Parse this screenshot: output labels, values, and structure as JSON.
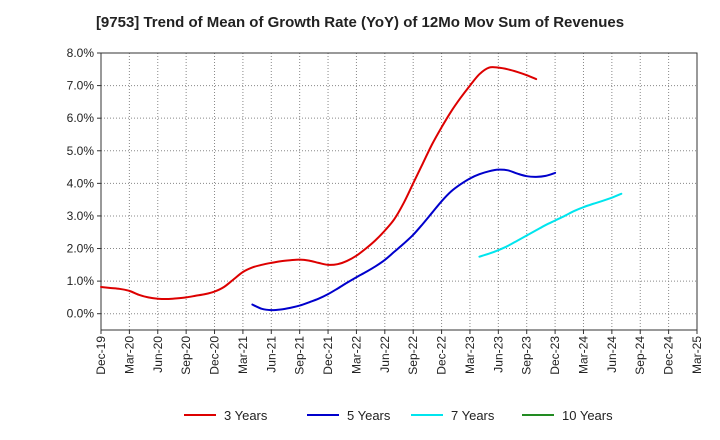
{
  "chart_data": {
    "type": "line",
    "title": "[9753]  Trend of Mean of Growth Rate (YoY) of 12Mo Mov Sum of Revenues",
    "xlabel": "",
    "ylabel": "",
    "ylim": [
      -0.5,
      8.0
    ],
    "yticks": [
      0.0,
      1.0,
      2.0,
      3.0,
      4.0,
      5.0,
      6.0,
      7.0,
      8.0
    ],
    "ytick_labels": [
      "0.0%",
      "1.0%",
      "2.0%",
      "3.0%",
      "4.0%",
      "5.0%",
      "6.0%",
      "7.0%",
      "8.0%"
    ],
    "x_tick_labels": [
      "Dec-19",
      "Mar-20",
      "Jun-20",
      "Sep-20",
      "Dec-20",
      "Mar-21",
      "Jun-21",
      "Sep-21",
      "Dec-21",
      "Mar-22",
      "Jun-22",
      "Sep-22",
      "Dec-22",
      "Mar-23",
      "Jun-23",
      "Sep-23",
      "Dec-23",
      "Mar-24",
      "Jun-24",
      "Sep-24",
      "Dec-24",
      "Mar-25"
    ],
    "x_months": 63,
    "grid": true,
    "legend_position": "bottom",
    "series": [
      {
        "name": "3 Years",
        "color": "#dd0000",
        "start_month": 0,
        "values": [
          0.82,
          0.79,
          0.76,
          0.7,
          0.58,
          0.5,
          0.46,
          0.45,
          0.47,
          0.5,
          0.55,
          0.6,
          0.68,
          0.82,
          1.05,
          1.28,
          1.42,
          1.5,
          1.56,
          1.61,
          1.64,
          1.66,
          1.63,
          1.56,
          1.5,
          1.52,
          1.62,
          1.78,
          2.0,
          2.25,
          2.55,
          2.9,
          3.4,
          4.0,
          4.6,
          5.2,
          5.72,
          6.2,
          6.62,
          7.0,
          7.35,
          7.55,
          7.55,
          7.5,
          7.42,
          7.32,
          7.2
        ]
      },
      {
        "name": "5 Years",
        "color": "#0000cc",
        "start_month": 16,
        "values": [
          0.28,
          0.15,
          0.11,
          0.13,
          0.18,
          0.25,
          0.35,
          0.46,
          0.6,
          0.77,
          0.95,
          1.12,
          1.28,
          1.45,
          1.65,
          1.9,
          2.15,
          2.42,
          2.75,
          3.1,
          3.45,
          3.75,
          3.97,
          4.15,
          4.28,
          4.37,
          4.42,
          4.4,
          4.3,
          4.22,
          4.2,
          4.23,
          4.32
        ]
      },
      {
        "name": "7 Years",
        "color": "#00e5ee",
        "start_month": 40,
        "values": [
          1.75,
          1.84,
          1.95,
          2.08,
          2.24,
          2.4,
          2.56,
          2.72,
          2.86,
          3.0,
          3.15,
          3.27,
          3.37,
          3.46,
          3.56,
          3.68
        ]
      },
      {
        "name": "10 Years",
        "color": "#228b22",
        "start_month": 0,
        "values": []
      }
    ]
  }
}
